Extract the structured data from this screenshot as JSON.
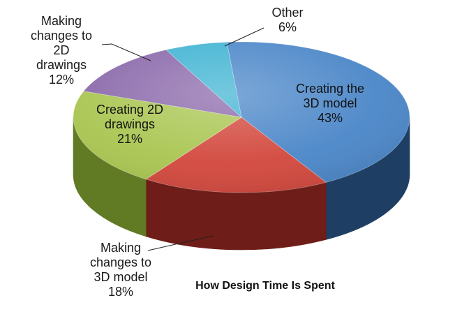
{
  "chart_data": {
    "type": "pie",
    "title": "How Design Time Is Spent",
    "unit": "%",
    "slices": [
      {
        "label": "Creating the 3D model",
        "lines": [
          "Creating the",
          "3D model"
        ],
        "value": 43,
        "color": "#4a86c8",
        "side_color": "#1e3f63"
      },
      {
        "label": "Making changes to 3D model",
        "lines": [
          "Making",
          "changes to",
          "3D model"
        ],
        "value": 18,
        "color": "#d2473c",
        "side_color": "#6e1d18"
      },
      {
        "label": "Creating 2D drawings",
        "lines": [
          "Creating 2D",
          "drawings"
        ],
        "value": 21,
        "color": "#a9c550",
        "side_color": "#617a24"
      },
      {
        "label": "Making changes to 2D drawings",
        "lines": [
          "Making",
          "changes to",
          "2D",
          "drawings"
        ],
        "value": 12,
        "color": "#8a68aa",
        "side_color": "#4b3560"
      },
      {
        "label": "Other",
        "lines": [
          "Other"
        ],
        "value": 6,
        "color": "#3fb3d2",
        "side_color": "#1f6c80"
      }
    ]
  }
}
